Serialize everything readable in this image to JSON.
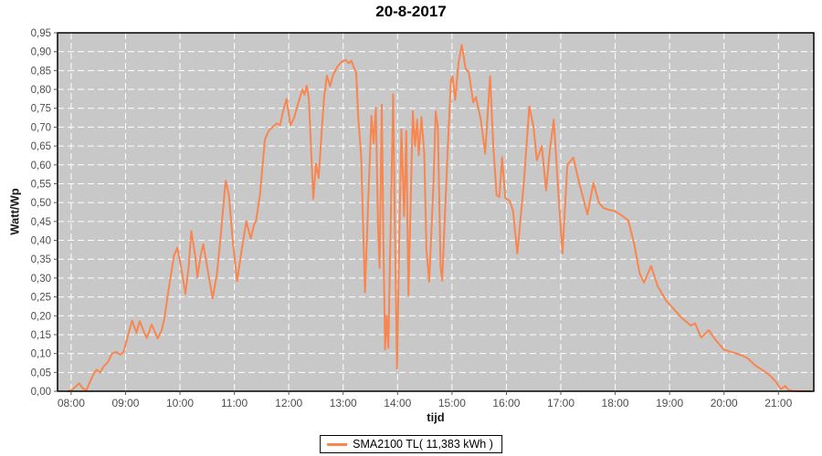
{
  "title": "20-8-2017",
  "axes": {
    "x_label": "tijd",
    "y_label": "Watt/Wp"
  },
  "legend": {
    "series_label": "SMA2100 TL( 11,383 kWh )"
  },
  "colors": {
    "series": "#f9854f",
    "plot_background": "#c8c8c8",
    "gridline": "#ffffff",
    "axis_border": "#000000",
    "tick_mark": "#555555",
    "tick_label": "#4d4d4d"
  },
  "chart_data": {
    "type": "line",
    "title": "20-8-2017",
    "xlabel": "tijd",
    "ylabel": "Watt/Wp",
    "legend_entries": [
      "SMA2100 TL( 11,383 kWh )"
    ],
    "legend_position": "bottom",
    "grid": true,
    "x_range_hours": [
      7.75,
      21.65
    ],
    "ylim": [
      0,
      0.95
    ],
    "x_ticks": [
      {
        "t": 8,
        "label": "08:00"
      },
      {
        "t": 9,
        "label": "09:00"
      },
      {
        "t": 10,
        "label": "10:00"
      },
      {
        "t": 11,
        "label": "11:00"
      },
      {
        "t": 12,
        "label": "12:00"
      },
      {
        "t": 13,
        "label": "13:00"
      },
      {
        "t": 14,
        "label": "14:00"
      },
      {
        "t": 15,
        "label": "15:00"
      },
      {
        "t": 16,
        "label": "16:00"
      },
      {
        "t": 17,
        "label": "17:00"
      },
      {
        "t": 18,
        "label": "18:00"
      },
      {
        "t": 19,
        "label": "19:00"
      },
      {
        "t": 20,
        "label": "20:00"
      },
      {
        "t": 21,
        "label": "21:00"
      }
    ],
    "y_ticks": [
      {
        "v": 0.0,
        "label": "0,00"
      },
      {
        "v": 0.05,
        "label": "0,05"
      },
      {
        "v": 0.1,
        "label": "0,10"
      },
      {
        "v": 0.15,
        "label": "0,15"
      },
      {
        "v": 0.2,
        "label": "0,20"
      },
      {
        "v": 0.25,
        "label": "0,25"
      },
      {
        "v": 0.3,
        "label": "0,30"
      },
      {
        "v": 0.35,
        "label": "0,35"
      },
      {
        "v": 0.4,
        "label": "0,40"
      },
      {
        "v": 0.45,
        "label": "0,45"
      },
      {
        "v": 0.5,
        "label": "0,50"
      },
      {
        "v": 0.55,
        "label": "0,55"
      },
      {
        "v": 0.6,
        "label": "0,60"
      },
      {
        "v": 0.65,
        "label": "0,65"
      },
      {
        "v": 0.7,
        "label": "0,70"
      },
      {
        "v": 0.75,
        "label": "0,75"
      },
      {
        "v": 0.8,
        "label": "0,80"
      },
      {
        "v": 0.85,
        "label": "0,85"
      },
      {
        "v": 0.9,
        "label": "0,90"
      },
      {
        "v": 0.95,
        "label": "0,95"
      }
    ],
    "series": [
      {
        "name": "SMA2100 TL( 11,383 kWh )",
        "points": [
          [
            7.95,
            0.0
          ],
          [
            8.02,
            0.004
          ],
          [
            8.08,
            0.012
          ],
          [
            8.15,
            0.021
          ],
          [
            8.21,
            0.008
          ],
          [
            8.28,
            0.003
          ],
          [
            8.35,
            0.026
          ],
          [
            8.42,
            0.048
          ],
          [
            8.47,
            0.057
          ],
          [
            8.53,
            0.049
          ],
          [
            8.6,
            0.066
          ],
          [
            8.68,
            0.078
          ],
          [
            8.75,
            0.1
          ],
          [
            8.83,
            0.104
          ],
          [
            8.9,
            0.097
          ],
          [
            8.96,
            0.103
          ],
          [
            9.04,
            0.145
          ],
          [
            9.12,
            0.187
          ],
          [
            9.2,
            0.155
          ],
          [
            9.26,
            0.186
          ],
          [
            9.33,
            0.16
          ],
          [
            9.39,
            0.141
          ],
          [
            9.48,
            0.177
          ],
          [
            9.59,
            0.14
          ],
          [
            9.66,
            0.16
          ],
          [
            9.71,
            0.19
          ],
          [
            9.8,
            0.277
          ],
          [
            9.89,
            0.36
          ],
          [
            9.95,
            0.38
          ],
          [
            10.02,
            0.33
          ],
          [
            10.1,
            0.258
          ],
          [
            10.16,
            0.33
          ],
          [
            10.21,
            0.425
          ],
          [
            10.28,
            0.36
          ],
          [
            10.32,
            0.302
          ],
          [
            10.38,
            0.36
          ],
          [
            10.43,
            0.39
          ],
          [
            10.5,
            0.33
          ],
          [
            10.6,
            0.246
          ],
          [
            10.68,
            0.31
          ],
          [
            10.76,
            0.43
          ],
          [
            10.84,
            0.558
          ],
          [
            10.9,
            0.52
          ],
          [
            10.97,
            0.4
          ],
          [
            11.05,
            0.292
          ],
          [
            11.13,
            0.37
          ],
          [
            11.22,
            0.45
          ],
          [
            11.3,
            0.405
          ],
          [
            11.36,
            0.44
          ],
          [
            11.4,
            0.453
          ],
          [
            11.47,
            0.52
          ],
          [
            11.56,
            0.667
          ],
          [
            11.63,
            0.69
          ],
          [
            11.7,
            0.7
          ],
          [
            11.78,
            0.71
          ],
          [
            11.84,
            0.705
          ],
          [
            11.9,
            0.745
          ],
          [
            11.96,
            0.775
          ],
          [
            12.03,
            0.705
          ],
          [
            12.1,
            0.725
          ],
          [
            12.17,
            0.762
          ],
          [
            12.25,
            0.8
          ],
          [
            12.29,
            0.786
          ],
          [
            12.33,
            0.81
          ],
          [
            12.37,
            0.775
          ],
          [
            12.41,
            0.64
          ],
          [
            12.45,
            0.51
          ],
          [
            12.5,
            0.603
          ],
          [
            12.55,
            0.566
          ],
          [
            12.61,
            0.7
          ],
          [
            12.65,
            0.78
          ],
          [
            12.7,
            0.837
          ],
          [
            12.76,
            0.808
          ],
          [
            12.81,
            0.837
          ],
          [
            12.9,
            0.862
          ],
          [
            12.98,
            0.874
          ],
          [
            13.05,
            0.878
          ],
          [
            13.1,
            0.869
          ],
          [
            13.15,
            0.876
          ],
          [
            13.2,
            0.858
          ],
          [
            13.24,
            0.843
          ],
          [
            13.28,
            0.72
          ],
          [
            13.33,
            0.625
          ],
          [
            13.4,
            0.262
          ],
          [
            13.46,
            0.5
          ],
          [
            13.52,
            0.73
          ],
          [
            13.56,
            0.657
          ],
          [
            13.6,
            0.751
          ],
          [
            13.64,
            0.439
          ],
          [
            13.67,
            0.327
          ],
          [
            13.71,
            0.759
          ],
          [
            13.74,
            0.4
          ],
          [
            13.77,
            0.11
          ],
          [
            13.8,
            0.2
          ],
          [
            13.83,
            0.115
          ],
          [
            13.88,
            0.5
          ],
          [
            13.92,
            0.787
          ],
          [
            13.95,
            0.44
          ],
          [
            13.99,
            0.06
          ],
          [
            14.03,
            0.4
          ],
          [
            14.07,
            0.694
          ],
          [
            14.12,
            0.464
          ],
          [
            14.16,
            0.69
          ],
          [
            14.2,
            0.254
          ],
          [
            14.24,
            0.5
          ],
          [
            14.28,
            0.742
          ],
          [
            14.32,
            0.65
          ],
          [
            14.36,
            0.72
          ],
          [
            14.39,
            0.625
          ],
          [
            14.44,
            0.727
          ],
          [
            14.49,
            0.63
          ],
          [
            14.53,
            0.375
          ],
          [
            14.58,
            0.29
          ],
          [
            14.63,
            0.45
          ],
          [
            14.66,
            0.548
          ],
          [
            14.7,
            0.742
          ],
          [
            14.74,
            0.7
          ],
          [
            14.79,
            0.33
          ],
          [
            14.82,
            0.293
          ],
          [
            14.88,
            0.5
          ],
          [
            14.94,
            0.7
          ],
          [
            14.98,
            0.825
          ],
          [
            15.01,
            0.835
          ],
          [
            15.06,
            0.772
          ],
          [
            15.12,
            0.87
          ],
          [
            15.18,
            0.918
          ],
          [
            15.25,
            0.855
          ],
          [
            15.31,
            0.845
          ],
          [
            15.39,
            0.765
          ],
          [
            15.44,
            0.78
          ],
          [
            15.53,
            0.72
          ],
          [
            15.61,
            0.63
          ],
          [
            15.7,
            0.835
          ],
          [
            15.76,
            0.65
          ],
          [
            15.82,
            0.52
          ],
          [
            15.87,
            0.515
          ],
          [
            15.92,
            0.62
          ],
          [
            15.98,
            0.512
          ],
          [
            16.06,
            0.505
          ],
          [
            16.12,
            0.48
          ],
          [
            16.2,
            0.365
          ],
          [
            16.32,
            0.55
          ],
          [
            16.42,
            0.755
          ],
          [
            16.5,
            0.7
          ],
          [
            16.56,
            0.612
          ],
          [
            16.65,
            0.65
          ],
          [
            16.73,
            0.532
          ],
          [
            16.8,
            0.64
          ],
          [
            16.87,
            0.72
          ],
          [
            16.95,
            0.54
          ],
          [
            17.03,
            0.365
          ],
          [
            17.12,
            0.6
          ],
          [
            17.23,
            0.619
          ],
          [
            17.35,
            0.545
          ],
          [
            17.49,
            0.469
          ],
          [
            17.6,
            0.552
          ],
          [
            17.7,
            0.5
          ],
          [
            17.78,
            0.486
          ],
          [
            17.9,
            0.48
          ],
          [
            17.99,
            0.478
          ],
          [
            18.1,
            0.468
          ],
          [
            18.24,
            0.453
          ],
          [
            18.35,
            0.39
          ],
          [
            18.45,
            0.312
          ],
          [
            18.53,
            0.288
          ],
          [
            18.66,
            0.332
          ],
          [
            18.78,
            0.279
          ],
          [
            18.94,
            0.239
          ],
          [
            19.02,
            0.227
          ],
          [
            19.22,
            0.195
          ],
          [
            19.39,
            0.174
          ],
          [
            19.47,
            0.18
          ],
          [
            19.58,
            0.142
          ],
          [
            19.72,
            0.162
          ],
          [
            19.85,
            0.135
          ],
          [
            20.0,
            0.11
          ],
          [
            20.17,
            0.103
          ],
          [
            20.34,
            0.094
          ],
          [
            20.43,
            0.088
          ],
          [
            20.57,
            0.069
          ],
          [
            20.73,
            0.054
          ],
          [
            20.84,
            0.042
          ],
          [
            20.95,
            0.026
          ],
          [
            21.04,
            0.006
          ],
          [
            21.09,
            0.01
          ],
          [
            21.13,
            0.014
          ],
          [
            21.18,
            0.004
          ],
          [
            21.25,
            0.001
          ],
          [
            21.4,
            0.0
          ],
          [
            21.6,
            0.0
          ]
        ]
      }
    ]
  }
}
